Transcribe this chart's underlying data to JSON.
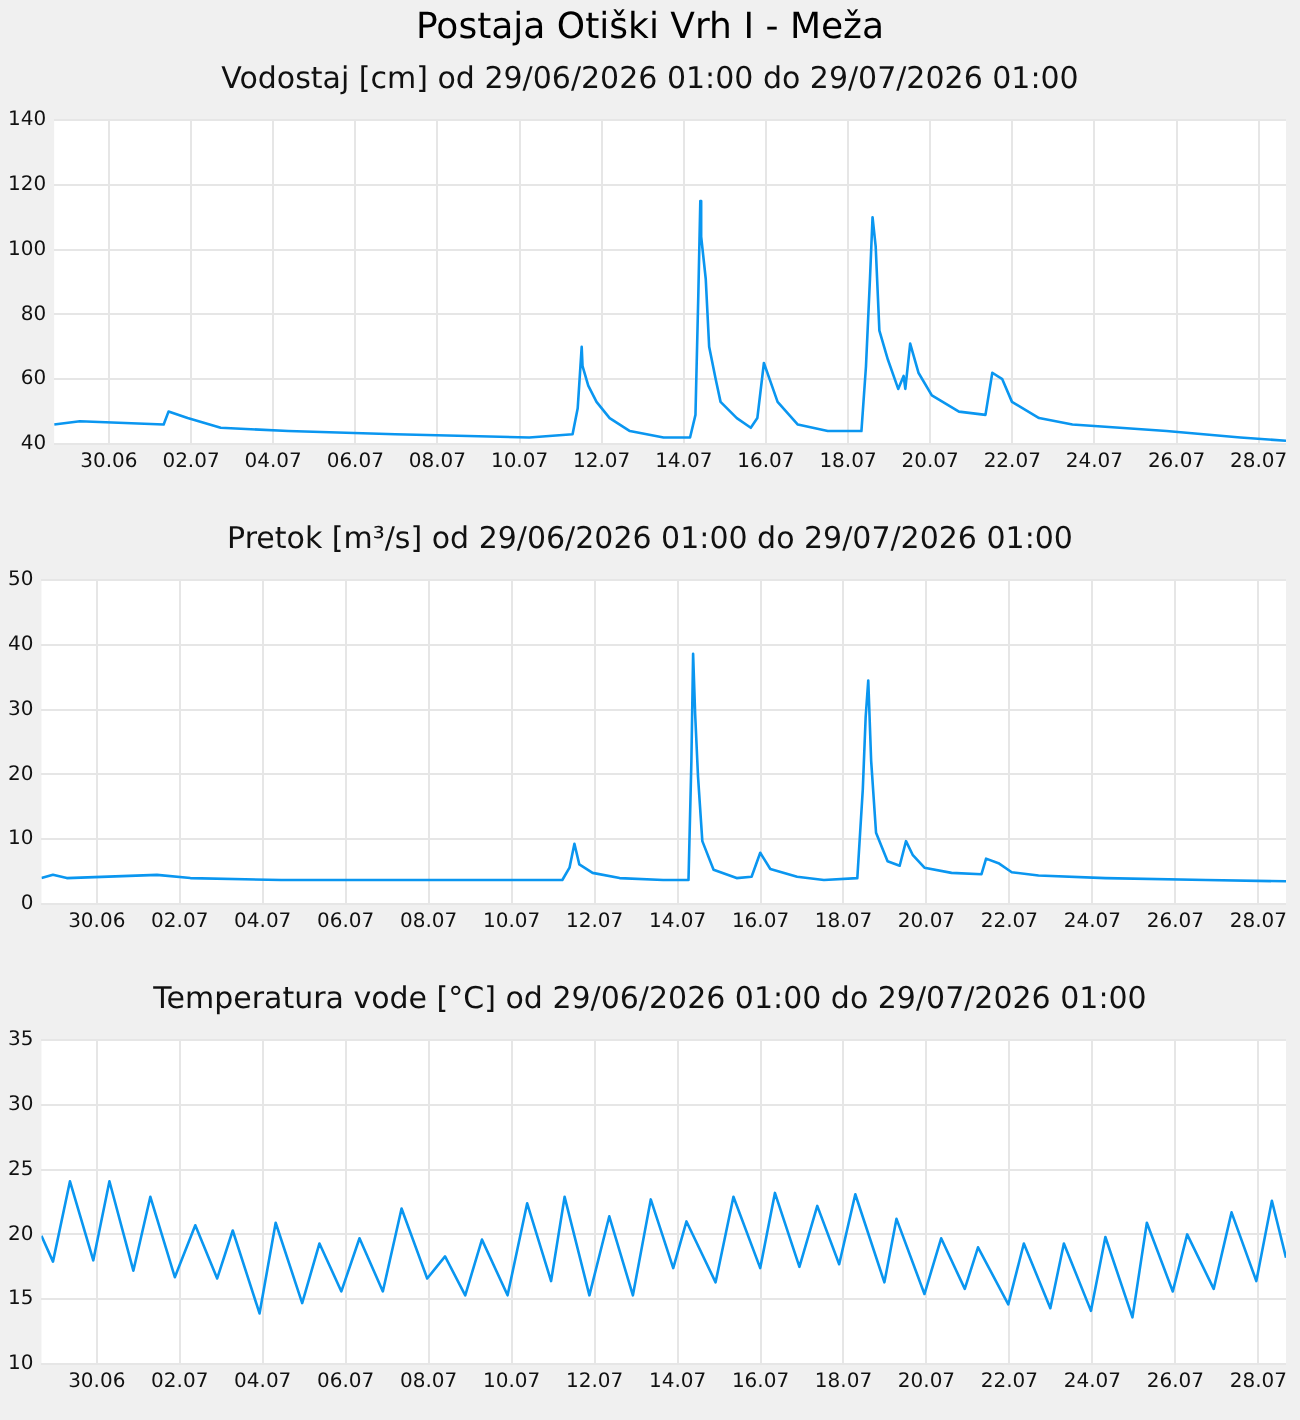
{
  "chart_data": [
    {
      "type": "line",
      "title": "Postaja Otiški Vrh I - Meža",
      "subtitle": "Vodostaj [cm] od 29/06/2026 01:00 do 29/07/2026 01:00",
      "x": [
        "2026-06-29T01:00",
        "2026-06-29T16:00",
        "2026-07-01T17:00",
        "2026-07-01T19:50",
        "2026-07-02T07:00",
        "2026-07-03T02:20",
        "2026-07-04T17:50",
        "2026-07-07T08:20",
        "2026-07-10T14:40",
        "2026-07-11T16:00",
        "2026-07-11T19:00",
        "2026-07-11T21:20",
        "2026-07-11T21:50",
        "2026-07-12T01:10",
        "2026-07-12T06:00",
        "2026-07-12T13:40",
        "2026-07-13T01:30",
        "2026-07-13T21:10",
        "2026-07-14T12:40",
        "2026-07-14T15:50",
        "2026-07-14T17:30",
        "2026-07-14T18:40",
        "2026-07-14T19:10",
        "2026-07-14T21:50",
        "2026-07-14T23:50",
        "2026-07-15T03:40",
        "2026-07-15T06:30",
        "2026-07-15T16:00",
        "2026-07-16T00:10",
        "2026-07-16T04:00",
        "2026-07-16T07:50",
        "2026-07-16T11:50",
        "2026-07-16T15:50",
        "2026-07-17T03:40",
        "2026-07-17T21:10",
        "2026-07-18T16:50",
        "2026-07-18T19:30",
        "2026-07-18T21:50",
        "2026-07-18T23:20",
        "2026-07-19T01:10",
        "2026-07-19T03:20",
        "2026-07-19T08:20",
        "2026-07-19T14:20",
        "2026-07-19T17:30",
        "2026-07-19T18:30",
        "2026-07-19T21:20",
        "2026-07-20T02:10",
        "2026-07-20T10:00",
        "2026-07-21T01:50",
        "2026-07-21T17:20",
        "2026-07-21T21:20",
        "2026-07-22T03:10",
        "2026-07-22T08:50",
        "2026-07-23T00:40",
        "2026-07-23T20:10",
        "2026-07-24T23:50",
        "2026-07-26T03:10",
        "2026-07-27T22:20",
        "2026-07-29T01:00"
      ],
      "series": [
        {
          "color": "#0a96f0",
          "values": [
            46,
            47,
            46,
            50,
            48,
            45,
            44,
            43,
            42,
            43,
            51,
            70,
            64,
            58,
            53,
            48,
            44,
            42,
            42,
            49,
            86,
            115,
            104,
            91,
            70,
            60,
            53,
            48,
            45,
            48,
            65,
            59,
            53,
            46,
            44,
            44,
            64,
            91,
            110,
            101,
            75,
            66,
            57,
            61,
            57,
            71,
            62,
            55,
            50,
            49,
            62,
            60,
            53,
            48,
            46,
            45,
            44,
            42,
            41
          ]
        }
      ],
      "xlim": [
        "2026-06-29T01:00",
        "2026-07-29T01:00"
      ],
      "xticks": [
        {
          "value": "2026-06-30T09:00",
          "label": "30.06"
        },
        {
          "value": "2026-07-02T09:00",
          "label": "02.07"
        },
        {
          "value": "2026-07-04T09:00",
          "label": "04.07"
        },
        {
          "value": "2026-07-06T09:00",
          "label": "06.07"
        },
        {
          "value": "2026-07-08T09:00",
          "label": "08.07"
        },
        {
          "value": "2026-07-10T09:00",
          "label": "10.07"
        },
        {
          "value": "2026-07-12T09:00",
          "label": "12.07"
        },
        {
          "value": "2026-07-14T09:00",
          "label": "14.07"
        },
        {
          "value": "2026-07-16T09:00",
          "label": "16.07"
        },
        {
          "value": "2026-07-18T09:00",
          "label": "18.07"
        },
        {
          "value": "2026-07-20T09:00",
          "label": "20.07"
        },
        {
          "value": "2026-07-22T09:00",
          "label": "22.07"
        },
        {
          "value": "2026-07-24T09:00",
          "label": "24.07"
        },
        {
          "value": "2026-07-26T09:00",
          "label": "26.07"
        },
        {
          "value": "2026-07-28T09:00",
          "label": "28.07"
        }
      ],
      "ylim": [
        40,
        140
      ],
      "yticks": [
        40,
        60,
        80,
        100,
        120,
        140
      ],
      "grid": true,
      "marker": "none"
    },
    {
      "type": "line",
      "title": "Pretok [m³/s] od 29/06/2026 01:00 do 29/07/2026 01:00",
      "x": [
        "2026-06-29T01:00",
        "2026-06-29T07:40",
        "2026-06-29T15:40",
        "2026-07-01T19:50",
        "2026-07-02T15:10",
        "2026-07-04T19:40",
        "2026-07-11T14:20",
        "2026-07-11T18:30",
        "2026-07-11T21:20",
        "2026-07-12T00:10",
        "2026-07-12T07:50",
        "2026-07-12T23:30",
        "2026-07-14T00:40",
        "2026-07-14T15:20",
        "2026-07-14T17:00",
        "2026-07-14T18:00",
        "2026-07-14T19:10",
        "2026-07-14T20:50",
        "2026-07-14T23:20",
        "2026-07-15T05:50",
        "2026-07-15T19:10",
        "2026-07-16T03:50",
        "2026-07-16T08:50",
        "2026-07-16T14:40",
        "2026-07-17T06:10",
        "2026-07-17T21:40",
        "2026-07-18T17:00",
        "2026-07-18T20:10",
        "2026-07-18T21:50",
        "2026-07-18T23:20",
        "2026-07-19T01:00",
        "2026-07-19T03:50",
        "2026-07-19T10:30",
        "2026-07-19T17:30",
        "2026-07-19T21:10",
        "2026-07-20T01:00",
        "2026-07-20T07:50",
        "2026-07-20T23:30",
        "2026-07-21T16:50",
        "2026-07-21T19:30",
        "2026-07-22T02:40",
        "2026-07-22T10:20",
        "2026-07-23T01:50",
        "2026-07-24T16:30",
        "2026-07-27T02:40",
        "2026-07-29T01:00"
      ],
      "series": [
        {
          "color": "#0a96f0",
          "values": [
            4.0,
            4.5,
            4.0,
            4.5,
            4.0,
            3.7,
            3.7,
            5.6,
            9.3,
            6.1,
            4.8,
            4.0,
            3.7,
            3.7,
            22,
            38.6,
            29.4,
            19.7,
            9.7,
            5.3,
            4.0,
            4.2,
            7.9,
            5.4,
            4.2,
            3.7,
            4.0,
            17.7,
            28.9,
            34.5,
            22.1,
            11.0,
            6.6,
            5.9,
            9.7,
            7.6,
            5.6,
            4.8,
            4.6,
            7.0,
            6.3,
            4.9,
            4.4,
            4.0,
            3.7,
            3.5
          ]
        }
      ],
      "xlim": [
        "2026-06-29T01:00",
        "2026-07-29T01:00"
      ],
      "xticks": [
        {
          "value": "2026-06-30T09:00",
          "label": "30.06"
        },
        {
          "value": "2026-07-02T09:00",
          "label": "02.07"
        },
        {
          "value": "2026-07-04T09:00",
          "label": "04.07"
        },
        {
          "value": "2026-07-06T09:00",
          "label": "06.07"
        },
        {
          "value": "2026-07-08T09:00",
          "label": "08.07"
        },
        {
          "value": "2026-07-10T09:00",
          "label": "10.07"
        },
        {
          "value": "2026-07-12T09:00",
          "label": "12.07"
        },
        {
          "value": "2026-07-14T09:00",
          "label": "14.07"
        },
        {
          "value": "2026-07-16T09:00",
          "label": "16.07"
        },
        {
          "value": "2026-07-18T09:00",
          "label": "18.07"
        },
        {
          "value": "2026-07-20T09:00",
          "label": "20.07"
        },
        {
          "value": "2026-07-22T09:00",
          "label": "22.07"
        },
        {
          "value": "2026-07-24T09:00",
          "label": "24.07"
        },
        {
          "value": "2026-07-26T09:00",
          "label": "26.07"
        },
        {
          "value": "2026-07-28T09:00",
          "label": "28.07"
        }
      ],
      "ylim": [
        0,
        50
      ],
      "yticks": [
        0,
        10,
        20,
        30,
        40,
        50
      ],
      "grid": true,
      "marker": "none"
    },
    {
      "type": "line",
      "title": "Temperatura vode [°C] od 29/06/2026 01:00 do 29/07/2026 01:00",
      "x": [
        "2026-06-29T01:00",
        "2026-06-29T07:40",
        "2026-06-29T17:30",
        "2026-06-30T07:00",
        "2026-06-30T16:20",
        "2026-07-01T06:10",
        "2026-07-01T16:00",
        "2026-07-02T06:10",
        "2026-07-02T18:00",
        "2026-07-03T06:40",
        "2026-07-03T15:40",
        "2026-07-04T07:10",
        "2026-07-04T16:30",
        "2026-07-05T07:50",
        "2026-07-05T17:50",
        "2026-07-06T06:30",
        "2026-07-06T17:00",
        "2026-07-07T06:30",
        "2026-07-07T17:20",
        "2026-07-08T08:10",
        "2026-07-08T18:30",
        "2026-07-09T06:10",
        "2026-07-09T15:50",
        "2026-07-10T06:40",
        "2026-07-10T18:00",
        "2026-07-11T07:50",
        "2026-07-11T15:40",
        "2026-07-12T06:00",
        "2026-07-12T17:30",
        "2026-07-13T07:10",
        "2026-07-13T17:30",
        "2026-07-14T06:30",
        "2026-07-14T14:10",
        "2026-07-15T07:00",
        "2026-07-15T17:20",
        "2026-07-16T08:50",
        "2026-07-16T17:20",
        "2026-07-17T07:30",
        "2026-07-17T17:50",
        "2026-07-18T06:30",
        "2026-07-18T15:50",
        "2026-07-19T08:40",
        "2026-07-19T15:40",
        "2026-07-20T07:50",
        "2026-07-20T17:30",
        "2026-07-21T07:10",
        "2026-07-21T14:50",
        "2026-07-22T08:20",
        "2026-07-22T17:20",
        "2026-07-23T08:40",
        "2026-07-23T16:30",
        "2026-07-24T08:10",
        "2026-07-24T16:30",
        "2026-07-25T08:10",
        "2026-07-25T16:30",
        "2026-07-26T07:30",
        "2026-07-26T15:50",
        "2026-07-27T07:10",
        "2026-07-27T17:30",
        "2026-07-28T07:50",
        "2026-07-28T16:50",
        "2026-07-29T01:00"
      ],
      "series": [
        {
          "color": "#0a96f0",
          "values": [
            19.9,
            17.9,
            24.1,
            18.0,
            24.1,
            17.2,
            22.9,
            16.7,
            20.7,
            16.6,
            20.3,
            13.9,
            20.9,
            14.7,
            19.3,
            15.6,
            19.7,
            15.6,
            22.0,
            16.6,
            18.3,
            15.3,
            19.6,
            15.3,
            22.4,
            16.4,
            22.9,
            15.3,
            21.4,
            15.3,
            22.7,
            17.4,
            21.0,
            16.3,
            22.9,
            17.4,
            23.2,
            17.5,
            22.2,
            17.7,
            23.1,
            16.3,
            21.2,
            15.4,
            19.7,
            15.8,
            19.0,
            14.6,
            19.3,
            14.3,
            19.3,
            14.1,
            19.8,
            13.6,
            20.9,
            15.6,
            20.0,
            15.8,
            21.7,
            16.4,
            22.6,
            18.2
          ]
        }
      ],
      "xlim": [
        "2026-06-29T01:00",
        "2026-07-29T01:00"
      ],
      "xticks": [
        {
          "value": "2026-06-30T09:00",
          "label": "30.06"
        },
        {
          "value": "2026-07-02T09:00",
          "label": "02.07"
        },
        {
          "value": "2026-07-04T09:00",
          "label": "04.07"
        },
        {
          "value": "2026-07-06T09:00",
          "label": "06.07"
        },
        {
          "value": "2026-07-08T09:00",
          "label": "08.07"
        },
        {
          "value": "2026-07-10T09:00",
          "label": "10.07"
        },
        {
          "value": "2026-07-12T09:00",
          "label": "12.07"
        },
        {
          "value": "2026-07-14T09:00",
          "label": "14.07"
        },
        {
          "value": "2026-07-16T09:00",
          "label": "16.07"
        },
        {
          "value": "2026-07-18T09:00",
          "label": "18.07"
        },
        {
          "value": "2026-07-20T09:00",
          "label": "20.07"
        },
        {
          "value": "2026-07-22T09:00",
          "label": "22.07"
        },
        {
          "value": "2026-07-24T09:00",
          "label": "24.07"
        },
        {
          "value": "2026-07-26T09:00",
          "label": "26.07"
        },
        {
          "value": "2026-07-28T09:00",
          "label": "28.07"
        }
      ],
      "ylim": [
        10,
        35
      ],
      "yticks": [
        10,
        15,
        20,
        25,
        30,
        35
      ],
      "grid": true,
      "marker": "none"
    }
  ]
}
